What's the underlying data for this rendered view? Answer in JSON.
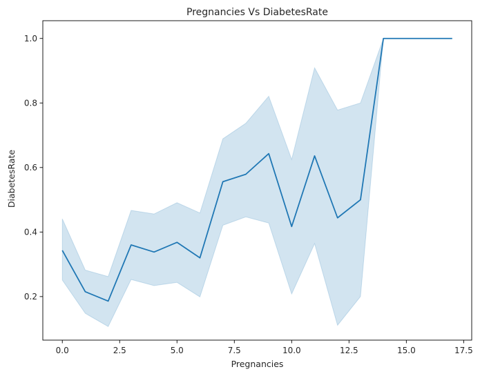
{
  "chart_data": {
    "type": "line",
    "title": "Pregnancies Vs DiabetesRate",
    "xlabel": "Pregnancies",
    "ylabel": "DiabetesRate",
    "xlim": [
      -0.85,
      17.85
    ],
    "ylim": [
      0.065,
      1.055
    ],
    "x_ticks": [
      0.0,
      2.5,
      5.0,
      7.5,
      10.0,
      12.5,
      15.0,
      17.5
    ],
    "x_tick_labels": [
      "0.0",
      "2.5",
      "5.0",
      "7.5",
      "10.0",
      "12.5",
      "15.0",
      "17.5"
    ],
    "y_ticks": [
      0.2,
      0.4,
      0.6,
      0.8,
      1.0
    ],
    "y_tick_labels": [
      "0.2",
      "0.4",
      "0.6",
      "0.8",
      "1.0"
    ],
    "grid": false,
    "line_color": "#1f77b4",
    "band_color": "#1f77b4",
    "series": [
      {
        "x": [
          0,
          1,
          2,
          3,
          4,
          5,
          6,
          7,
          8,
          9,
          10,
          11,
          12,
          13,
          14,
          15,
          16,
          17
        ],
        "values": [
          0.343,
          0.215,
          0.186,
          0.36,
          0.338,
          0.368,
          0.32,
          0.556,
          0.579,
          0.643,
          0.417,
          0.636,
          0.444,
          0.5,
          1.0,
          1.0,
          1.0,
          1.0
        ],
        "ci_lower": [
          0.251,
          0.148,
          0.107,
          0.253,
          0.234,
          0.244,
          0.199,
          0.421,
          0.447,
          0.428,
          0.208,
          0.364,
          0.111,
          0.2,
          1.0,
          1.0,
          1.0,
          1.0
        ],
        "ci_upper": [
          0.441,
          0.282,
          0.262,
          0.467,
          0.456,
          0.491,
          0.459,
          0.689,
          0.737,
          0.821,
          0.625,
          0.909,
          0.778,
          0.8,
          1.0,
          1.0,
          1.0,
          1.0
        ]
      }
    ]
  }
}
